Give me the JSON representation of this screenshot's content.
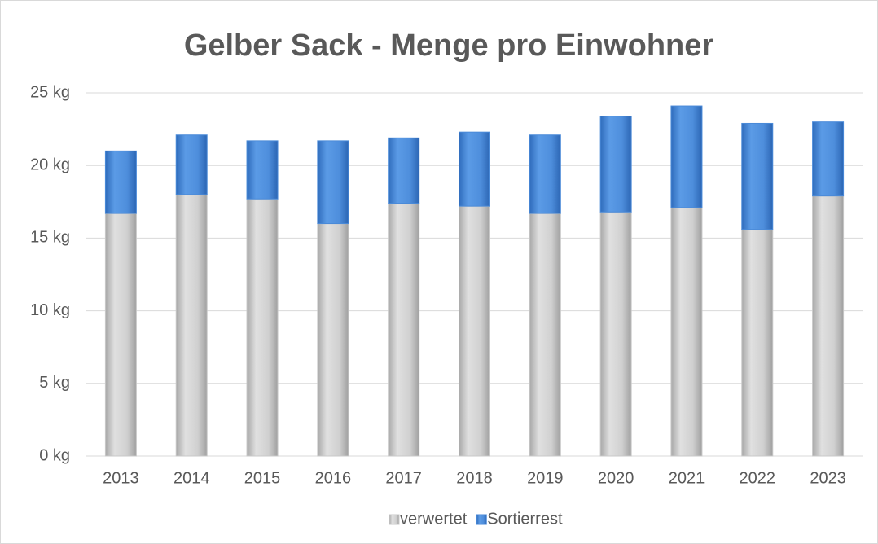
{
  "chart_data": {
    "type": "stacked_bar",
    "title": "Gelber Sack - Menge pro Einwohner",
    "categories": [
      "2013",
      "2014",
      "2015",
      "2016",
      "2017",
      "2018",
      "2019",
      "2020",
      "2021",
      "2022",
      "2023"
    ],
    "series": [
      {
        "name": "verwertet",
        "color": "#c8c8c8",
        "values": [
          16.7,
          18.0,
          17.7,
          16.0,
          17.4,
          17.2,
          16.7,
          16.8,
          17.1,
          15.6,
          17.9
        ]
      },
      {
        "name": "Sortierrest",
        "color": "#4a8ad8",
        "values": [
          4.3,
          4.1,
          4.0,
          5.7,
          4.5,
          5.1,
          5.4,
          6.6,
          7.0,
          7.3,
          5.1
        ]
      }
    ],
    "ylim": [
      0,
      25
    ],
    "yticks": [
      {
        "value": 0,
        "label": "0 kg"
      },
      {
        "value": 5,
        "label": "5 kg"
      },
      {
        "value": 10,
        "label": "10 kg"
      },
      {
        "value": 15,
        "label": "15 kg"
      },
      {
        "value": 20,
        "label": "20 kg"
      },
      {
        "value": 25,
        "label": "25 kg"
      }
    ],
    "grid": true,
    "legend": "bottom"
  }
}
